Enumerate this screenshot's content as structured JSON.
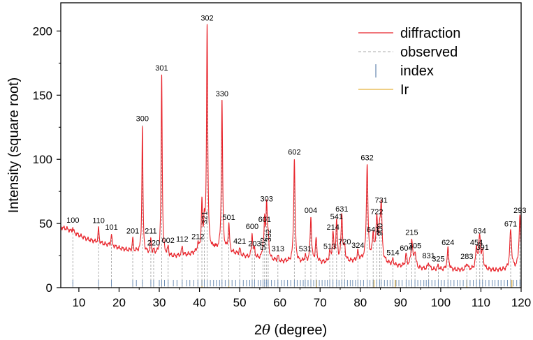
{
  "chart_data": {
    "type": "line",
    "xlabel_prefix": "2",
    "xlabel_symbol": "θ",
    "xlabel_suffix": " (degree)",
    "ylabel": "Intensity (square root)",
    "xlim": [
      5.5,
      120
    ],
    "ylim": [
      0,
      222
    ],
    "xticks": [
      10,
      20,
      30,
      40,
      50,
      60,
      70,
      80,
      90,
      100,
      110,
      120
    ],
    "yticks": [
      0,
      50,
      100,
      150,
      200
    ],
    "grid": false,
    "legend": {
      "placement": "top-right",
      "entries": [
        {
          "label": "diffraction",
          "color": "#e8232a",
          "style": "line"
        },
        {
          "label": "observed",
          "color": "#a8a8a8",
          "style": "dash"
        },
        {
          "label": "index",
          "color": "#6f8fb5",
          "style": "tick"
        },
        {
          "label": "Ir",
          "color": "#e5b23c",
          "style": "line"
        }
      ]
    },
    "colors": {
      "diffraction": "#e8232a",
      "observed": "#a8a8a8",
      "index": "#6f8fb5",
      "ir": "#e5b23c"
    },
    "background": [
      [
        5.5,
        47
      ],
      [
        7,
        46
      ],
      [
        8,
        44
      ],
      [
        10,
        41
      ],
      [
        12,
        38
      ],
      [
        15,
        35
      ],
      [
        18,
        33
      ],
      [
        20,
        31
      ],
      [
        23,
        29
      ],
      [
        26,
        27.5
      ],
      [
        30,
        26
      ],
      [
        34,
        25
      ],
      [
        37,
        26
      ],
      [
        40,
        29
      ],
      [
        44,
        31
      ],
      [
        48,
        28
      ],
      [
        52,
        24
      ],
      [
        56,
        22
      ],
      [
        60,
        21
      ],
      [
        65,
        20
      ],
      [
        70,
        20
      ],
      [
        75,
        20
      ],
      [
        80,
        22
      ],
      [
        84,
        22
      ],
      [
        88,
        18
      ],
      [
        90,
        17
      ],
      [
        95,
        15
      ],
      [
        100,
        14
      ],
      [
        105,
        14
      ],
      [
        110,
        14
      ],
      [
        115,
        14
      ],
      [
        120,
        15
      ]
    ],
    "peaks": [
      {
        "x": 8.5,
        "h": 4,
        "label": "100"
      },
      {
        "x": 14.9,
        "h": 12,
        "label": "110"
      },
      {
        "x": 18.1,
        "h": 9,
        "label": "101"
      },
      {
        "x": 23.4,
        "h": 10,
        "label": "201"
      },
      {
        "x": 25.8,
        "h": 99,
        "label": "300"
      },
      {
        "x": 27.9,
        "h": 12,
        "label": "211"
      },
      {
        "x": 28.6,
        "h": 3,
        "label": "220"
      },
      {
        "x": 30.6,
        "h": 140,
        "label": "301"
      },
      {
        "x": 32.2,
        "h": 6,
        "label": "002"
      },
      {
        "x": 35.7,
        "h": 7,
        "label": "112"
      },
      {
        "x": 39.6,
        "h": 6,
        "label": "212"
      },
      {
        "x": 40.6,
        "h": 36,
        "label": ""
      },
      {
        "x": 41.2,
        "h": 20,
        "label": "321"
      },
      {
        "x": 41.9,
        "h": 175,
        "label": "302"
      },
      {
        "x": 45.6,
        "h": 116,
        "label": "330"
      },
      {
        "x": 47.3,
        "h": 21,
        "label": "501"
      },
      {
        "x": 50.0,
        "h": 5,
        "label": "421"
      },
      {
        "x": 53.1,
        "h": 19,
        "label": "600"
      },
      {
        "x": 53.7,
        "h": 6,
        "label": "203"
      },
      {
        "x": 55.8,
        "h": 7,
        "label": "502"
      },
      {
        "x": 56.2,
        "h": 26,
        "label": "601"
      },
      {
        "x": 56.7,
        "h": 42,
        "label": "303"
      },
      {
        "x": 57.1,
        "h": 14,
        "label": "332"
      },
      {
        "x": 59.5,
        "h": 4,
        "label": "313"
      },
      {
        "x": 63.6,
        "h": 80,
        "label": "602"
      },
      {
        "x": 66.3,
        "h": 5,
        "label": "531"
      },
      {
        "x": 67.7,
        "h": 35,
        "label": "004"
      },
      {
        "x": 69.0,
        "h": 18,
        "label": ""
      },
      {
        "x": 72.4,
        "h": 7,
        "label": "513"
      },
      {
        "x": 73.2,
        "h": 22,
        "label": "214"
      },
      {
        "x": 74.1,
        "h": 30,
        "label": "541"
      },
      {
        "x": 75.4,
        "h": 36,
        "label": "631"
      },
      {
        "x": 76.1,
        "h": 10,
        "label": "720"
      },
      {
        "x": 79.4,
        "h": 6,
        "label": "324"
      },
      {
        "x": 81.7,
        "h": 74,
        "label": "632"
      },
      {
        "x": 83.2,
        "h": 18,
        "label": "641"
      },
      {
        "x": 84.1,
        "h": 32,
        "label": "722"
      },
      {
        "x": 84.8,
        "h": 19,
        "label": "900"
      },
      {
        "x": 85.2,
        "h": 42,
        "label": "731"
      },
      {
        "x": 88.1,
        "h": 4,
        "label": "514"
      },
      {
        "x": 91.4,
        "h": 9,
        "label": "604"
      },
      {
        "x": 92.8,
        "h": 22,
        "label": "215"
      },
      {
        "x": 93.6,
        "h": 12,
        "label": "305"
      },
      {
        "x": 97.0,
        "h": 5,
        "label": "831"
      },
      {
        "x": 99.4,
        "h": 3,
        "label": "325"
      },
      {
        "x": 101.8,
        "h": 16,
        "label": "624"
      },
      {
        "x": 106.5,
        "h": 5,
        "label": "283"
      },
      {
        "x": 108.9,
        "h": 16,
        "label": "454"
      },
      {
        "x": 109.7,
        "h": 25,
        "label": "634"
      },
      {
        "x": 110.4,
        "h": 12,
        "label": "391"
      },
      {
        "x": 117.4,
        "h": 30,
        "label": "671"
      },
      {
        "x": 119.7,
        "h": 40,
        "label": "293"
      }
    ],
    "ir_lines": [
      40.6,
      47.3,
      69.1,
      83.4,
      88.7,
      106.5,
      117.7
    ],
    "index_ticks": [
      8.5,
      14.9,
      18.1,
      23.4,
      24.3,
      25.8,
      27.9,
      28.6,
      30.0,
      30.6,
      31.3,
      32.2,
      33.5,
      34.4,
      35.7,
      36.8,
      37.6,
      38.6,
      39.6,
      40.6,
      41.2,
      41.9,
      42.7,
      43.5,
      44.2,
      45.0,
      45.6,
      46.4,
      47.3,
      48.1,
      49.0,
      50.0,
      50.9,
      51.7,
      52.5,
      53.1,
      53.7,
      54.6,
      55.2,
      55.8,
      56.2,
      56.7,
      57.1,
      57.9,
      58.7,
      59.5,
      60.4,
      61.1,
      61.9,
      62.7,
      63.6,
      64.3,
      65.1,
      65.8,
      66.3,
      67.0,
      67.7,
      68.4,
      69.0,
      69.8,
      70.5,
      71.2,
      71.8,
      72.4,
      73.2,
      74.1,
      74.7,
      75.4,
      76.1,
      76.8,
      77.5,
      78.1,
      78.8,
      79.4,
      80.1,
      80.8,
      81.7,
      82.4,
      83.2,
      84.1,
      84.8,
      85.2,
      86.0,
      86.7,
      87.4,
      88.1,
      88.9,
      89.6,
      90.4,
      91.4,
      92.1,
      92.8,
      93.6,
      94.3,
      95.0,
      95.8,
      96.4,
      97.0,
      97.8,
      98.6,
      99.4,
      100.1,
      100.9,
      101.8,
      102.5,
      103.3,
      104.1,
      104.8,
      105.6,
      106.5,
      107.3,
      108.1,
      108.9,
      109.7,
      110.4,
      111.2,
      112.0,
      112.8,
      113.5,
      114.3,
      115.0,
      115.8,
      116.6,
      117.4,
      118.1,
      118.9,
      119.7
    ]
  }
}
